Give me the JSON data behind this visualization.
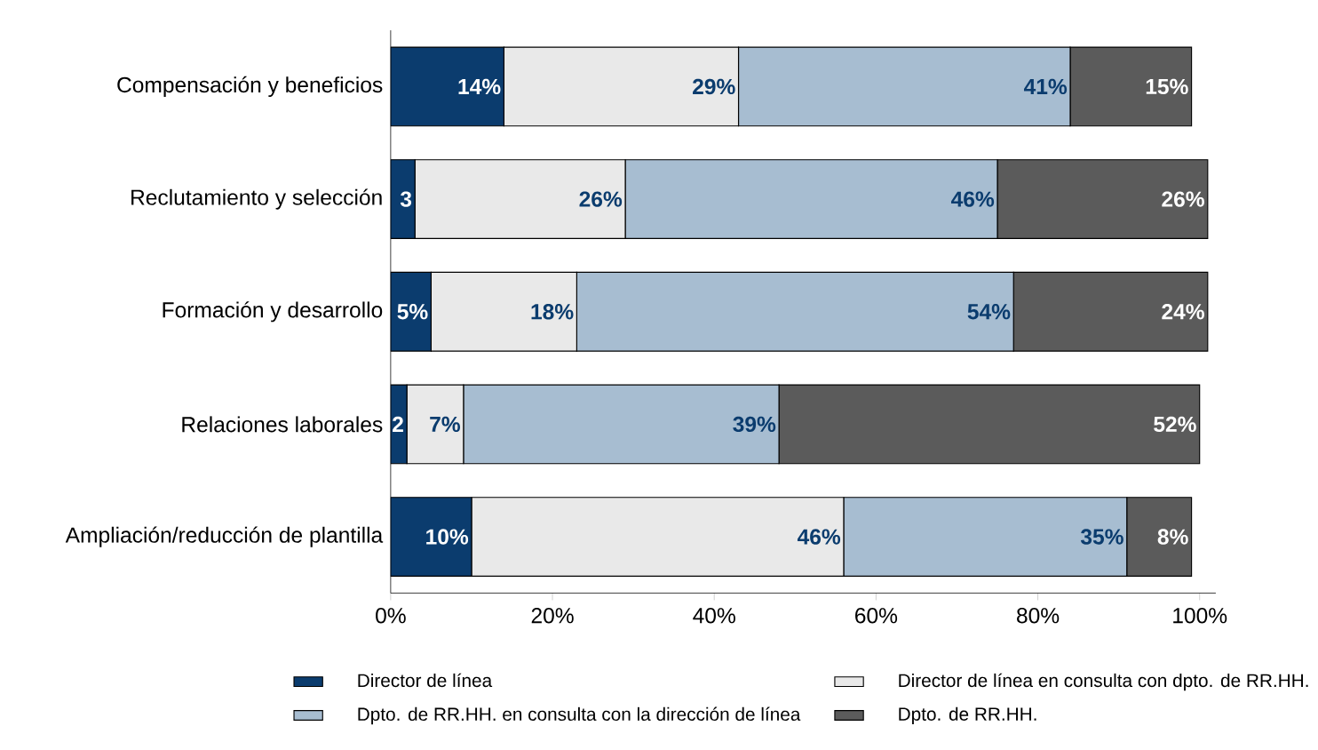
{
  "chart_data": {
    "type": "bar",
    "orientation": "horizontal",
    "stacked": true,
    "categories": [
      "Compensación y beneficios",
      "Reclutamiento y selección",
      "Formación y desarrollo",
      "Relaciones laborales",
      "Ampliación/reducción de plantilla"
    ],
    "series": [
      {
        "name": "Director de línea",
        "color": "#0b3c6e",
        "values": [
          14,
          3,
          5,
          2,
          10
        ],
        "value_labels": [
          "14%",
          "3",
          "5%",
          "2",
          "10%"
        ]
      },
      {
        "name": "Director de línea en consulta con dpto. de RR.HH.",
        "color": "#e9e9e9",
        "values": [
          29,
          26,
          18,
          7,
          46
        ],
        "value_labels": [
          "29%",
          "26%",
          "18%",
          "7%",
          "46%"
        ]
      },
      {
        "name": "Dpto. de RR.HH. en consulta con la dirección de línea",
        "color": "#a7bdd1",
        "values": [
          41,
          46,
          54,
          39,
          35
        ],
        "value_labels": [
          "41%",
          "46%",
          "54%",
          "39%",
          "35%"
        ]
      },
      {
        "name": "Dpto. de RR.HH.",
        "color": "#5b5b5b",
        "values": [
          15,
          26,
          24,
          52,
          8
        ],
        "value_labels": [
          "15%",
          "26%",
          "24%",
          "52%",
          "8%"
        ]
      }
    ],
    "xlim": [
      0,
      102
    ],
    "xticks": [
      {
        "value": 0,
        "label": "0%"
      },
      {
        "value": 20,
        "label": "20%"
      },
      {
        "value": 40,
        "label": "40%"
      },
      {
        "value": 60,
        "label": "60%"
      },
      {
        "value": 80,
        "label": "80%"
      },
      {
        "value": 100,
        "label": "100%"
      }
    ],
    "grid": false,
    "legend": "bottom"
  }
}
